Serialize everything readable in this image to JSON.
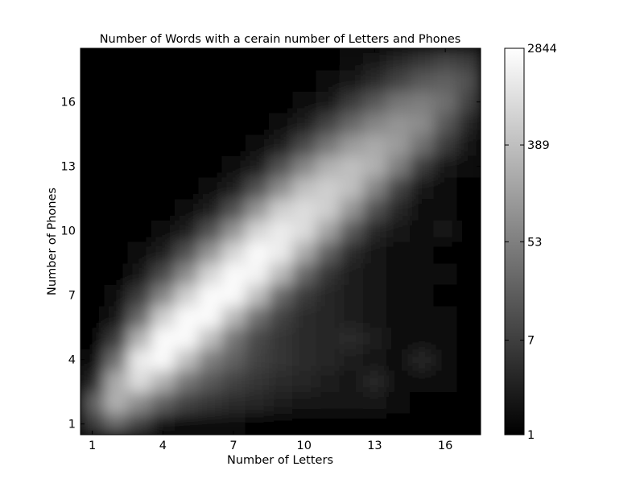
{
  "chart_data": {
    "type": "heatmap",
    "title": "Number of Words with a cerain number of Letters and Phones",
    "xlabel": "Number of Letters",
    "ylabel": "Number of Phones",
    "x_ticks": [
      1,
      4,
      7,
      10,
      13,
      16
    ],
    "y_ticks": [
      1,
      4,
      7,
      10,
      13,
      16
    ],
    "xlim": [
      0.5,
      17.5
    ],
    "ylim": [
      0.5,
      18.5
    ],
    "interpolation": "smooth",
    "colormap": "gray",
    "colorbar": {
      "scale": "log",
      "min": 1,
      "max": 2844,
      "tick_labels": [
        "2844",
        "389",
        "53",
        "7",
        "1"
      ],
      "tick_values": [
        2844,
        389,
        53,
        7,
        1
      ]
    },
    "grid": false,
    "note_values": "log10 word counts estimated from brightness; each row is one number of phones, columns are number of letters 1..17",
    "rows_by_phones_log10": {
      "1": [
        0.8,
        1.4,
        0.9,
        0.3,
        0.1,
        0.1,
        0.1,
        0,
        0,
        0,
        0,
        0,
        0,
        0,
        0,
        0,
        0
      ],
      "2": [
        1.3,
        2.4,
        1.9,
        1.3,
        0.9,
        0.7,
        0.6,
        0.5,
        0.4,
        0.3,
        0.3,
        0.3,
        0.3,
        0.1,
        0,
        0,
        0
      ],
      "3": [
        0.5,
        2.3,
        3.0,
        2.4,
        1.6,
        1.2,
        0.9,
        0.7,
        0.6,
        0.5,
        0.4,
        0.3,
        0.5,
        0.1,
        0.1,
        0.1,
        0
      ],
      "4": [
        0.2,
        1.5,
        3.2,
        3.4,
        2.6,
        1.7,
        1.3,
        0.9,
        0.7,
        0.6,
        0.5,
        0.4,
        0.3,
        0.2,
        0.5,
        0.1,
        0
      ],
      "5": [
        0,
        0.8,
        2.4,
        3.4,
        3.4,
        2.6,
        1.6,
        1.0,
        0.7,
        0.6,
        0.5,
        0.6,
        0.4,
        0.2,
        0.1,
        0.1,
        0
      ],
      "6": [
        0,
        0.3,
        1.4,
        2.8,
        3.4,
        3.4,
        2.5,
        1.5,
        0.9,
        0.6,
        0.5,
        0.4,
        0.3,
        0.2,
        0.1,
        0.1,
        0
      ],
      "7": [
        0,
        0.1,
        0.8,
        1.8,
        2.8,
        3.4,
        3.4,
        2.6,
        1.4,
        0.8,
        0.5,
        0.4,
        0.3,
        0.2,
        0.1,
        0,
        0
      ],
      "8": [
        0,
        0,
        0.3,
        1.0,
        1.9,
        2.9,
        3.4,
        3.3,
        2.5,
        1.4,
        0.7,
        0.4,
        0.3,
        0.2,
        0.1,
        0.1,
        0
      ],
      "9": [
        0,
        0,
        0.1,
        0.4,
        1.1,
        2.0,
        2.9,
        3.4,
        3.2,
        2.3,
        1.3,
        0.6,
        0.3,
        0.2,
        0.1,
        0,
        0
      ],
      "10": [
        0,
        0,
        0,
        0.1,
        0.4,
        1.1,
        2.0,
        2.9,
        3.2,
        3.0,
        2.2,
        1.2,
        0.5,
        0.3,
        0.1,
        0.3,
        0
      ],
      "11": [
        0,
        0,
        0,
        0,
        0.1,
        0.4,
        1.1,
        2.0,
        2.8,
        3.0,
        2.8,
        2.0,
        1.1,
        0.5,
        0.2,
        0.1,
        0
      ],
      "12": [
        0,
        0,
        0,
        0,
        0,
        0.1,
        0.4,
        1.1,
        1.9,
        2.6,
        2.8,
        2.6,
        1.8,
        0.9,
        0.3,
        0.1,
        0
      ],
      "13": [
        0,
        0,
        0,
        0,
        0,
        0,
        0.1,
        0.4,
        1.1,
        1.8,
        2.4,
        2.6,
        2.4,
        1.7,
        0.8,
        0.3,
        0.1
      ],
      "14": [
        0,
        0,
        0,
        0,
        0,
        0,
        0,
        0.1,
        0.4,
        1.0,
        1.6,
        2.1,
        2.3,
        2.1,
        1.5,
        0.8,
        0.3
      ],
      "15": [
        0,
        0,
        0,
        0,
        0,
        0,
        0,
        0,
        0.1,
        0.4,
        0.9,
        1.4,
        1.8,
        2.0,
        1.9,
        1.2,
        0.5
      ],
      "16": [
        0,
        0,
        0,
        0,
        0,
        0,
        0,
        0,
        0,
        0.1,
        0.3,
        0.8,
        1.2,
        1.6,
        1.7,
        1.5,
        0.9
      ],
      "17": [
        0,
        0,
        0,
        0,
        0,
        0,
        0,
        0,
        0,
        0,
        0.1,
        0.3,
        0.6,
        0.9,
        1.2,
        1.3,
        1.1
      ],
      "18": [
        0,
        0,
        0,
        0,
        0,
        0,
        0,
        0,
        0,
        0,
        0,
        0.1,
        0.3,
        0.5,
        0.7,
        0.9,
        0.8
      ]
    }
  }
}
